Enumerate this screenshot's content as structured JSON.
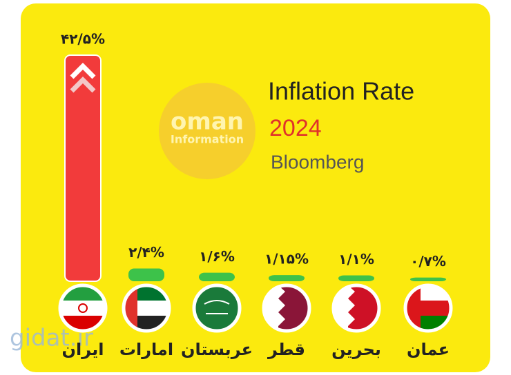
{
  "chart_data": {
    "type": "bar",
    "title": "Inflation Rate",
    "subtitle": "2024",
    "source": "Bloomberg",
    "logo": [
      "oman",
      "Information"
    ],
    "watermark": "gidat.ir",
    "categories": [
      "ایران",
      "امارات",
      "عربستان",
      "قطر",
      "بحرین",
      "عمان"
    ],
    "values": [
      42.5,
      2.4,
      1.6,
      1.15,
      1.1,
      0.7
    ],
    "value_labels": [
      "۴۲/۵%",
      "۲/۴%",
      "۱/۶%",
      "۱/۱۵%",
      "۱/۱%",
      "۰/۷%"
    ],
    "colors": [
      "#f23b3b",
      "#3dc24a",
      "#3dc24a",
      "#3dc24a",
      "#3dc24a",
      "#3dc24a"
    ]
  }
}
